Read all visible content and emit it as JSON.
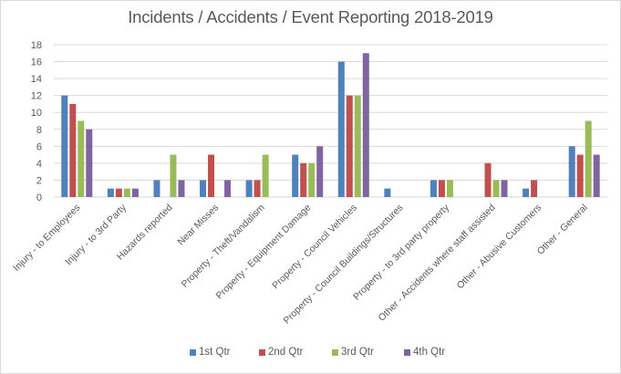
{
  "chart_data": {
    "type": "bar",
    "title": "Incidents / Accidents / Event Reporting 2018-2019",
    "xlabel": "",
    "ylabel": "",
    "ylim": [
      0,
      18
    ],
    "yticks": [
      0,
      2,
      4,
      6,
      8,
      10,
      12,
      14,
      16,
      18
    ],
    "grid": true,
    "legend_position": "bottom",
    "categories": [
      "Injury - to Employees",
      "Injury - to 3rd Party",
      "Hazards reported",
      "Near Misses",
      "Property - Theft/Vandalism",
      "Property - Equipment Damage",
      "Property - Council Vehicles",
      "Property - Council Buildings/Structures",
      "Property - to 3rd party property",
      "Other - Accidents where staff assisted",
      "Other - Abusive Customers",
      "Other - General"
    ],
    "series": [
      {
        "name": "1st Qtr",
        "color": "#4f81bd",
        "values": [
          12,
          1,
          2,
          2,
          2,
          5,
          16,
          1,
          2,
          null,
          1,
          6
        ]
      },
      {
        "name": "2nd Qtr",
        "color": "#c0504d",
        "values": [
          11,
          1,
          null,
          5,
          2,
          4,
          12,
          null,
          2,
          4,
          2,
          5
        ]
      },
      {
        "name": "3rd Qtr",
        "color": "#9bbb59",
        "values": [
          9,
          1,
          5,
          null,
          5,
          4,
          12,
          null,
          2,
          2,
          null,
          9
        ]
      },
      {
        "name": "4th Qtr",
        "color": "#8064a2",
        "values": [
          8,
          1,
          2,
          2,
          null,
          6,
          17,
          null,
          null,
          2,
          null,
          5
        ]
      }
    ]
  }
}
